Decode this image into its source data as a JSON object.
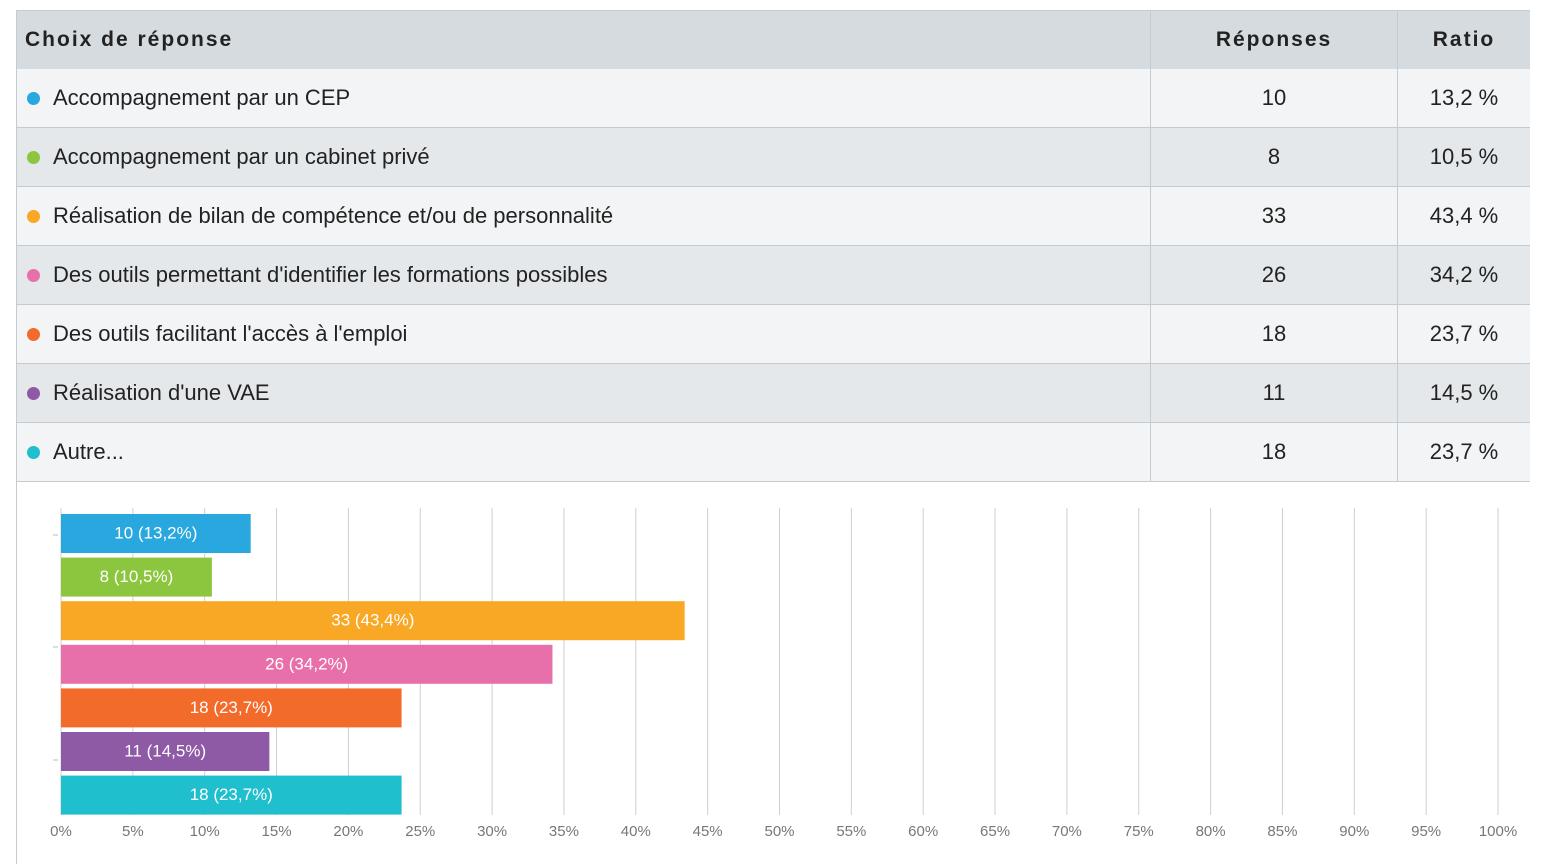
{
  "table": {
    "headers": [
      "Choix de réponse",
      "Réponses",
      "Ratio"
    ],
    "rows": [
      [
        "Accompagnement par un CEP",
        "10",
        "13,2 %"
      ],
      [
        "Accompagnement par un cabinet privé",
        "8",
        "10,5 %"
      ],
      [
        "Réalisation de bilan de compétence et/ou de personnalité",
        "33",
        "43,4 %"
      ],
      [
        "Des outils permettant d'identifier les formations possibles",
        "26",
        "34,2 %"
      ],
      [
        "Des outils facilitant l'accès à l'emploi",
        "18",
        "23,7 %"
      ],
      [
        "Réalisation d'une VAE",
        "11",
        "14,5 %"
      ],
      [
        "Autre...",
        "18",
        "23,7 %"
      ]
    ]
  },
  "chart_data": {
    "type": "bar",
    "orientation": "horizontal",
    "values": [
      13.2,
      10.5,
      43.4,
      34.2,
      23.7,
      14.5,
      23.7
    ],
    "value_labels": [
      "10 (13,2%)",
      "8 (10,5%)",
      "33 (43,4%)",
      "26 (34,2%)",
      "18 (23,7%)",
      "11 (14,5%)",
      "18 (23,7%)"
    ],
    "colors": [
      "#29a8e0",
      "#8cc63f",
      "#f9a825",
      "#e870aa",
      "#f26b2a",
      "#8e59a5",
      "#1fbfce"
    ],
    "xlim": [
      0,
      100
    ],
    "xticks": [
      {
        "value": 0,
        "label": "0%"
      },
      {
        "value": 5,
        "label": "5%"
      },
      {
        "value": 10,
        "label": "10%"
      },
      {
        "value": 15,
        "label": "15%"
      },
      {
        "value": 20,
        "label": "20%"
      },
      {
        "value": 25,
        "label": "25%"
      },
      {
        "value": 30,
        "label": "30%"
      },
      {
        "value": 35,
        "label": "35%"
      },
      {
        "value": 40,
        "label": "40%"
      },
      {
        "value": 45,
        "label": "45%"
      },
      {
        "value": 50,
        "label": "50%"
      },
      {
        "value": 55,
        "label": "55%"
      },
      {
        "value": 60,
        "label": "60%"
      },
      {
        "value": 65,
        "label": "65%"
      },
      {
        "value": 70,
        "label": "70%"
      },
      {
        "value": 75,
        "label": "75%"
      },
      {
        "value": 80,
        "label": "80%"
      },
      {
        "value": 85,
        "label": "85%"
      },
      {
        "value": 90,
        "label": "90%"
      },
      {
        "value": 95,
        "label": "95%"
      },
      {
        "value": 100,
        "label": "100%"
      }
    ],
    "grid": true
  }
}
